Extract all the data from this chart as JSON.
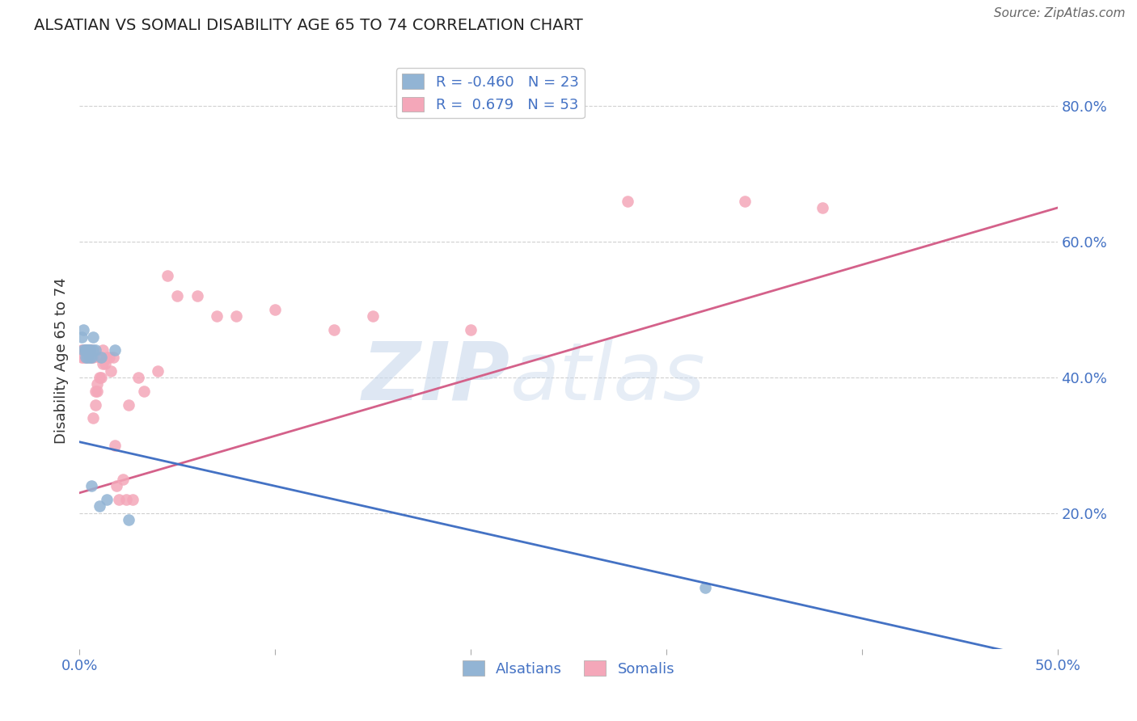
{
  "title": "ALSATIAN VS SOMALI DISABILITY AGE 65 TO 74 CORRELATION CHART",
  "source": "Source: ZipAtlas.com",
  "ylabel_label": "Disability Age 65 to 74",
  "xmin": 0.0,
  "xmax": 0.5,
  "ymin": 0.0,
  "ymax": 0.85,
  "x_ticks": [
    0.0,
    0.1,
    0.2,
    0.3,
    0.4,
    0.5
  ],
  "y_tick_labels": [
    "20.0%",
    "40.0%",
    "60.0%",
    "80.0%"
  ],
  "y_tick_values": [
    0.2,
    0.4,
    0.6,
    0.8
  ],
  "alsatian_R": -0.46,
  "alsatian_N": 23,
  "somali_R": 0.679,
  "somali_N": 53,
  "alsatian_color": "#92b4d4",
  "somali_color": "#f4a7b9",
  "alsatian_line_color": "#4472c4",
  "somali_line_color": "#d4618a",
  "alsatian_x": [
    0.001,
    0.002,
    0.002,
    0.003,
    0.003,
    0.003,
    0.004,
    0.004,
    0.004,
    0.005,
    0.005,
    0.005,
    0.006,
    0.006,
    0.007,
    0.007,
    0.008,
    0.01,
    0.011,
    0.014,
    0.018,
    0.025,
    0.32
  ],
  "alsatian_y": [
    0.46,
    0.44,
    0.47,
    0.44,
    0.44,
    0.43,
    0.44,
    0.44,
    0.43,
    0.44,
    0.44,
    0.43,
    0.24,
    0.43,
    0.46,
    0.44,
    0.44,
    0.21,
    0.43,
    0.22,
    0.44,
    0.19,
    0.09
  ],
  "somali_x": [
    0.001,
    0.001,
    0.002,
    0.002,
    0.003,
    0.003,
    0.003,
    0.004,
    0.004,
    0.004,
    0.005,
    0.005,
    0.005,
    0.006,
    0.006,
    0.007,
    0.007,
    0.008,
    0.008,
    0.009,
    0.009,
    0.01,
    0.01,
    0.011,
    0.012,
    0.012,
    0.013,
    0.014,
    0.015,
    0.016,
    0.017,
    0.018,
    0.019,
    0.02,
    0.022,
    0.024,
    0.025,
    0.027,
    0.03,
    0.033,
    0.04,
    0.045,
    0.05,
    0.06,
    0.07,
    0.08,
    0.1,
    0.13,
    0.15,
    0.2,
    0.28,
    0.34,
    0.38
  ],
  "somali_y": [
    0.44,
    0.43,
    0.44,
    0.43,
    0.44,
    0.44,
    0.43,
    0.44,
    0.43,
    0.44,
    0.44,
    0.43,
    0.44,
    0.44,
    0.43,
    0.34,
    0.43,
    0.36,
    0.38,
    0.38,
    0.39,
    0.4,
    0.43,
    0.4,
    0.42,
    0.44,
    0.42,
    0.43,
    0.43,
    0.41,
    0.43,
    0.3,
    0.24,
    0.22,
    0.25,
    0.22,
    0.36,
    0.22,
    0.4,
    0.38,
    0.41,
    0.55,
    0.52,
    0.52,
    0.49,
    0.49,
    0.5,
    0.47,
    0.49,
    0.47,
    0.66,
    0.66,
    0.65
  ],
  "watermark_zip": "ZIP",
  "watermark_atlas": "atlas",
  "background_color": "#ffffff",
  "grid_color": "#d0d0d0"
}
